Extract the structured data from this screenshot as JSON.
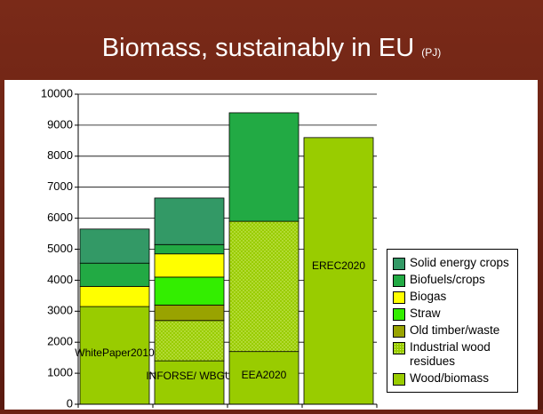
{
  "chart_data": {
    "type": "stacked-bar",
    "title": "Biomass, sustainably in EU",
    "title_unit": "(PJ)",
    "categories": [
      "WhitePaper2010",
      "INFORSE/ WBGU",
      "EEA2020",
      "EREC2020"
    ],
    "series": [
      {
        "name": "Wood/biomass",
        "color": "#99cc00",
        "values": [
          3150,
          1400,
          1700,
          8600
        ]
      },
      {
        "name": "Industrial wood residues",
        "color": "#99cc00",
        "pattern": "dots",
        "values": [
          0,
          1300,
          4200,
          0
        ]
      },
      {
        "name": "Old timber/waste",
        "color": "#99a300",
        "values": [
          0,
          500,
          0,
          0
        ]
      },
      {
        "name": "Straw",
        "color": "#33ee00",
        "values": [
          0,
          900,
          0,
          0
        ]
      },
      {
        "name": "Biogas",
        "color": "#ffff00",
        "values": [
          650,
          750,
          0,
          0
        ]
      },
      {
        "name": "Biofuels/crops",
        "color": "#22aa44",
        "values": [
          750,
          300,
          3500,
          0
        ]
      },
      {
        "name": "Solid energy crops",
        "color": "#339966",
        "values": [
          1100,
          1500,
          0,
          0
        ]
      }
    ],
    "ylim": [
      0,
      10000
    ],
    "yticks": [
      0,
      1000,
      2000,
      3000,
      4000,
      5000,
      6000,
      7000,
      8000,
      9000,
      10000
    ],
    "grid": true
  }
}
